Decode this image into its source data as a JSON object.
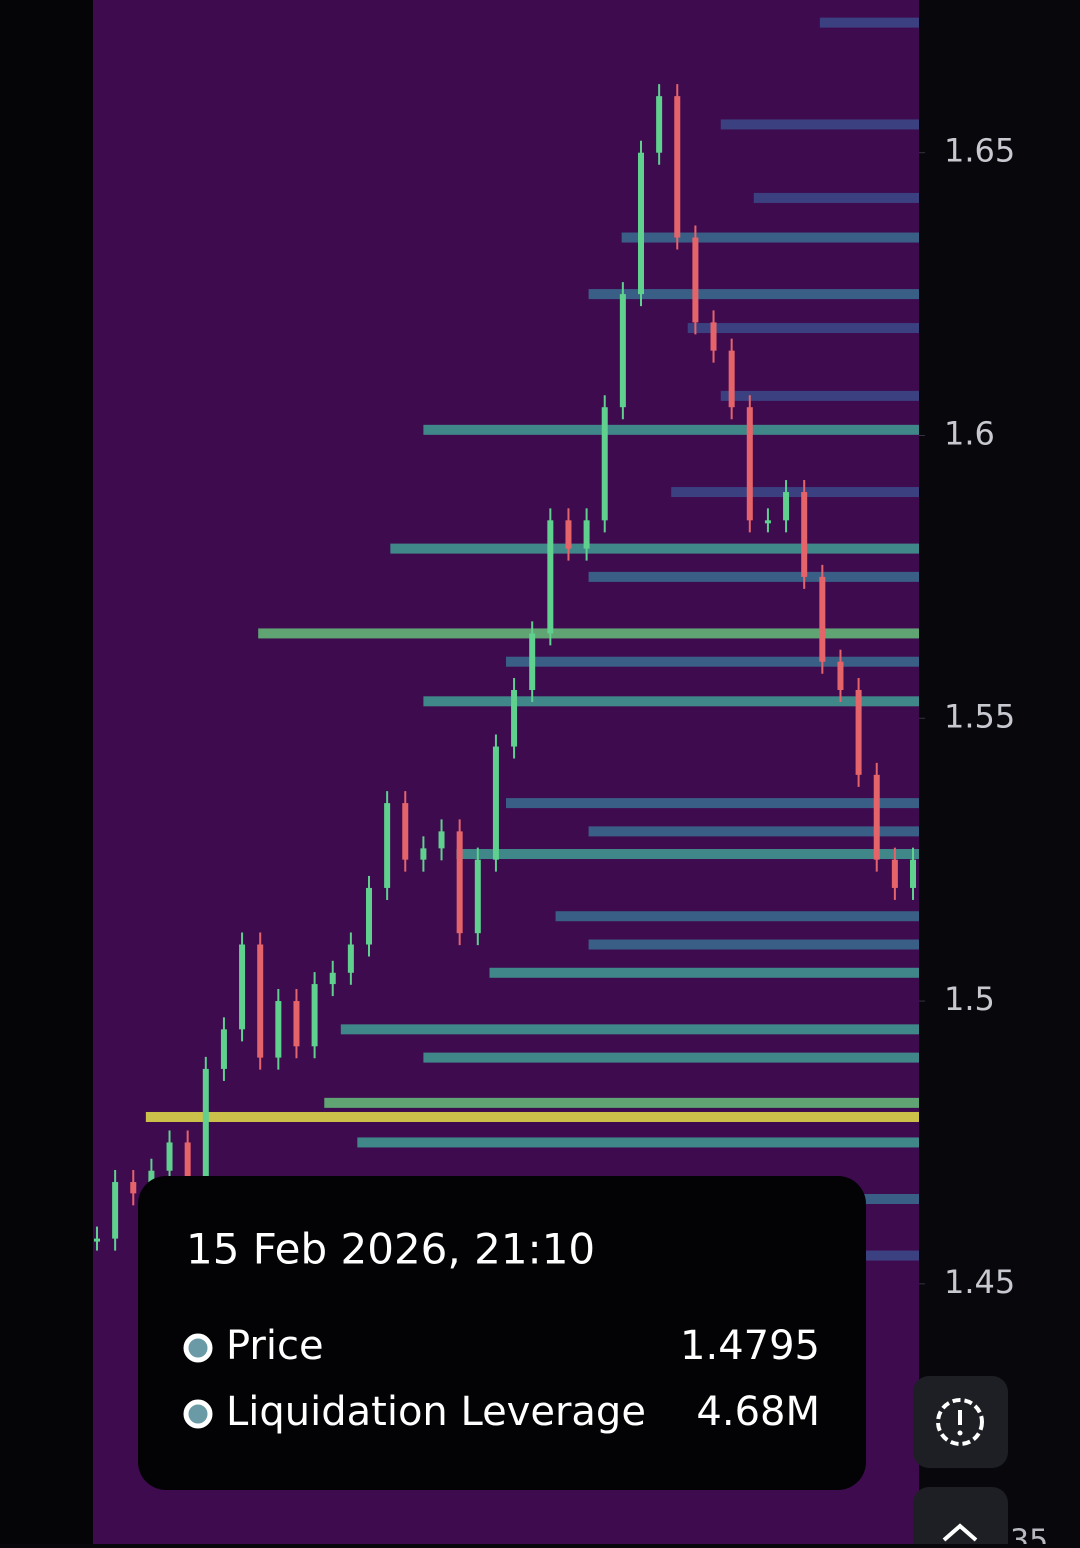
{
  "chart_data": {
    "type": "liquidation_heatmap",
    "ylim": [
      1.404,
      1.677
    ],
    "yticks": [
      1.65,
      1.6,
      1.55,
      1.5,
      1.45
    ],
    "price": {
      "name": "Price",
      "values": [
        1.458,
        1.468,
        1.466,
        1.47,
        1.475,
        1.468,
        1.488,
        1.495,
        1.51,
        1.49,
        1.5,
        1.492,
        1.503,
        1.505,
        1.51,
        1.52,
        1.535,
        1.525,
        1.527,
        1.53,
        1.512,
        1.525,
        1.545,
        1.555,
        1.565,
        1.585,
        1.58,
        1.585,
        1.605,
        1.625,
        1.65,
        1.66,
        1.635,
        1.62,
        1.615,
        1.605,
        1.585,
        1.585,
        1.59,
        1.575,
        1.56,
        1.555,
        1.54,
        1.525,
        1.52,
        1.525
      ]
    },
    "levels": {
      "prices": [
        1.673,
        1.655,
        1.642,
        1.635,
        1.625,
        1.619,
        1.607,
        1.601,
        1.59,
        1.58,
        1.575,
        1.565,
        1.56,
        1.553,
        1.535,
        1.53,
        1.526,
        1.515,
        1.51,
        1.505,
        1.495,
        1.49,
        1.482,
        1.4795,
        1.475,
        1.465,
        1.455
      ],
      "values": [
        600000,
        1200000,
        1000000,
        1800000,
        2000000,
        1400000,
        1200000,
        3000000,
        1500000,
        3200000,
        2000000,
        4000000,
        2500000,
        3000000,
        2500000,
        2000000,
        2800000,
        2200000,
        2000000,
        2600000,
        3500000,
        3000000,
        3600000,
        4680000,
        3400000,
        2000000,
        1500000
      ]
    },
    "vlim": [
      0,
      5000000
    ],
    "tooltip": {
      "time": "15 Feb 2026, 21:10",
      "rows": [
        {
          "label": "Price",
          "value": 1.4795
        },
        {
          "label": "Liquidation Leverage",
          "value": 4680000,
          "value_label": "4.68M"
        }
      ]
    },
    "corner_label": "35"
  }
}
